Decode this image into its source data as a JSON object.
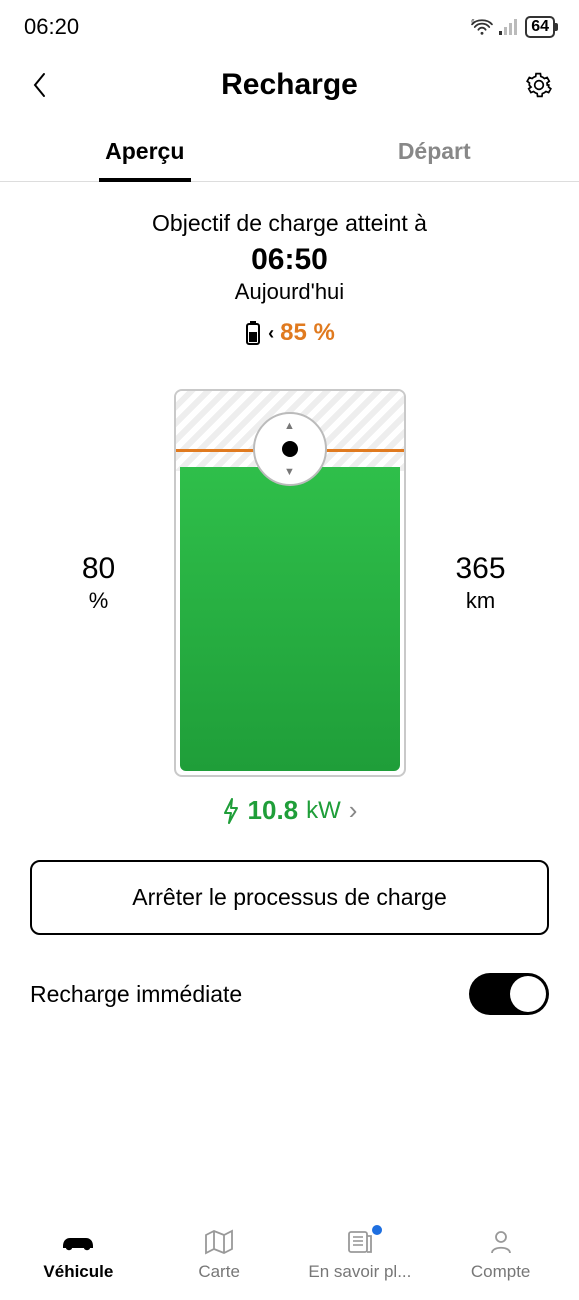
{
  "status": {
    "time": "06:20",
    "battery": "64"
  },
  "header": {
    "title": "Recharge"
  },
  "tabs": {
    "overview": "Aperçu",
    "departure": "Départ"
  },
  "goal": {
    "label": "Objectif de charge atteint à",
    "time": "06:50",
    "day": "Aujourd'hui",
    "target_pct": "85 %"
  },
  "charge": {
    "current_pct_value": "80",
    "current_pct_unit": "%",
    "range_value": "365",
    "range_unit": "km",
    "fill_pct": 80,
    "target_line_pct": 85,
    "power_value": "10.8",
    "power_unit": "kW",
    "colors": {
      "fill_top": "#2fbf4a",
      "fill_bottom": "#1f9e39",
      "target_line": "#e07a1f",
      "accent_text": "#e07a1f",
      "power_text": "#1f9e39"
    }
  },
  "buttons": {
    "stop": "Arrêter le processus de charge"
  },
  "toggle": {
    "label": "Recharge immédiate",
    "on": true
  },
  "nav": {
    "vehicle": "Véhicule",
    "map": "Carte",
    "news": "En savoir pl...",
    "account": "Compte"
  }
}
